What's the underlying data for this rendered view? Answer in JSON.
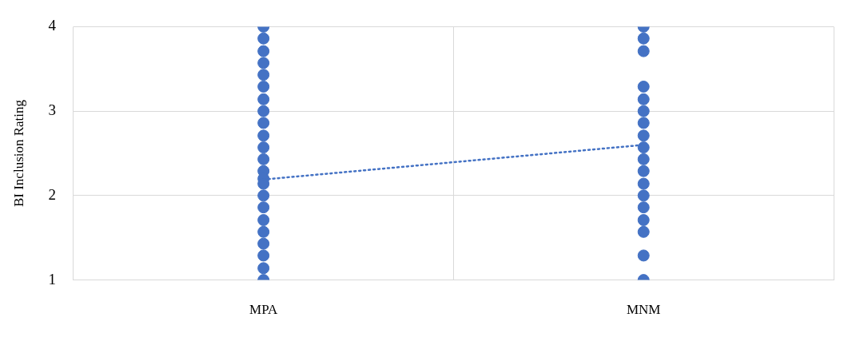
{
  "chart_data": {
    "type": "scatter",
    "ylabel": "BI Inclusion Rating",
    "categories": [
      "MPA",
      "MNM"
    ],
    "ylim": [
      1,
      4
    ],
    "yticks": [
      1,
      2,
      3,
      4
    ],
    "grid": true,
    "legend": false,
    "marker": "circle",
    "series": [
      {
        "color": "#4472c4",
        "x": [
          "MPA",
          "MPA",
          "MPA",
          "MPA",
          "MPA",
          "MPA",
          "MPA",
          "MPA",
          "MPA",
          "MPA",
          "MPA",
          "MPA",
          "MPA",
          "MPA",
          "MPA",
          "MPA",
          "MPA",
          "MPA",
          "MPA",
          "MPA",
          "MPA",
          "MPA",
          "MPA",
          "MPA"
        ],
        "values": [
          4,
          3.86,
          3.71,
          3.57,
          3.43,
          3.29,
          3.14,
          3,
          2.86,
          2.71,
          2.57,
          2.43,
          null,
          2.29,
          2.2,
          2.14,
          2,
          1.86,
          1.71,
          1.57,
          1.43,
          1.29,
          1.14,
          1
        ]
      },
      {
        "color": "#4472c4",
        "x": [
          "MNM",
          "MNM",
          "MNM",
          "MNM",
          "MNM",
          "MNM",
          "MNM",
          "MNM",
          "MNM",
          "MNM",
          "MNM",
          "MNM",
          "MNM",
          "MNM",
          "MNM",
          "MNM",
          "MNM",
          "MNM"
        ],
        "values": [
          4,
          3.86,
          3.71,
          3.29,
          3.14,
          3,
          2.86,
          2.71,
          2.57,
          2.43,
          2.29,
          2.14,
          2,
          1.86,
          1.71,
          1.57,
          1.29,
          1
        ]
      },
      {
        "type": "line",
        "color": "#4472c4",
        "x": [
          "MPA",
          "MNM"
        ],
        "values": [
          2.19,
          2.6
        ],
        "line_style": "dotted",
        "marker": "none"
      }
    ]
  }
}
